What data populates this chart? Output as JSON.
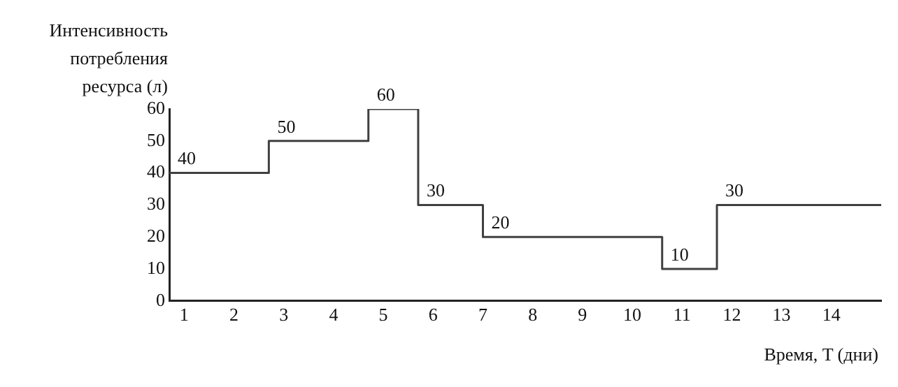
{
  "chart_data": {
    "type": "step",
    "ylabel": "Интенсивность потребления ресурса (л)",
    "xlabel": "Время, T (дни)",
    "x": [
      0.7,
      2.7,
      4.7,
      5.7,
      7,
      10.6,
      11.7,
      15
    ],
    "series": [
      {
        "color": "#404040",
        "values": [
          40,
          50,
          60,
          30,
          20,
          10,
          30,
          30
        ],
        "value_labels": [
          "40",
          "50",
          "60",
          "30",
          "20",
          "10",
          "30",
          null
        ]
      }
    ],
    "xlim": [
      0.7,
      15
    ],
    "xticks": [
      1,
      2,
      3,
      4,
      5,
      6,
      7,
      8,
      9,
      10,
      11,
      12,
      13,
      14
    ],
    "ylim": [
      0,
      60
    ],
    "yticks": [
      0,
      10,
      20,
      30,
      40,
      50,
      60
    ],
    "grid": false,
    "legend": false,
    "marker": "none",
    "line_style": "solid"
  }
}
